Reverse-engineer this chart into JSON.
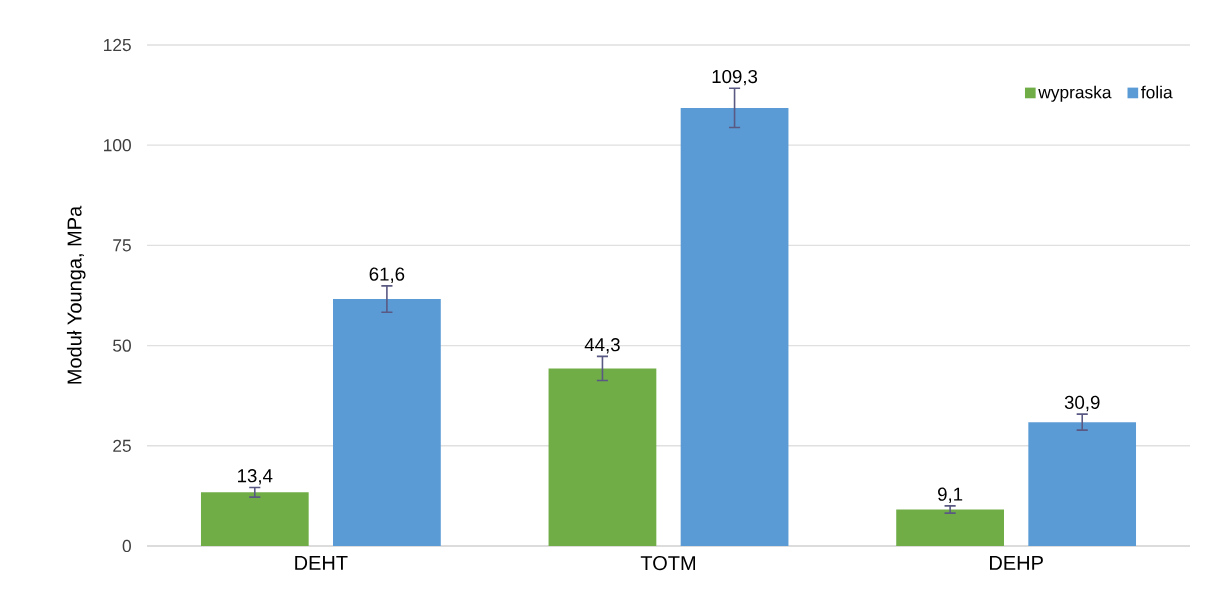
{
  "chart_data": {
    "type": "bar",
    "ylabel": "Moduł Younga, MPa",
    "categories": [
      "DEHT",
      "TOTM",
      "DEHP"
    ],
    "series": [
      {
        "name": "wypraska",
        "color": "#70ad47",
        "values": [
          13.4,
          44.3,
          9.1
        ],
        "errors": [
          1.2,
          3.0,
          0.9
        ],
        "value_labels": [
          "13,4",
          "44,3",
          "9,1"
        ]
      },
      {
        "name": "folia",
        "color": "#5b9bd5",
        "values": [
          61.6,
          109.3,
          30.9
        ],
        "errors": [
          3.3,
          4.9,
          2.0
        ],
        "value_labels": [
          "61,6",
          "109,3",
          "30,9"
        ]
      }
    ],
    "ylim": [
      0,
      125
    ],
    "yticks": [
      0,
      25,
      50,
      75,
      100,
      125
    ],
    "grid": "y",
    "legend": "top right"
  }
}
